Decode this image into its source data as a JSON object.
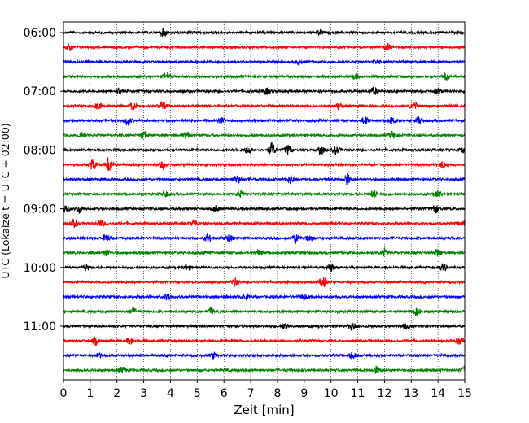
{
  "chart_data": {
    "type": "line",
    "xlabel": "Zeit  [min]",
    "ylabel": "UTC (Lokalzeit = UTC + 02:00)",
    "xlim": [
      0,
      15
    ],
    "x_ticks": [
      "0",
      "1",
      "2",
      "3",
      "4",
      "5",
      "6",
      "7",
      "8",
      "9",
      "10",
      "11",
      "12",
      "13",
      "14",
      "15"
    ],
    "y_ticks": [
      "06:00",
      "07:00",
      "08:00",
      "09:00",
      "10:00",
      "11:00"
    ],
    "grid": "vertical dotted lines at each minute",
    "trace_interval_min": 15,
    "color_cycle": [
      "#000000",
      "#ff0000",
      "#0000ff",
      "#008000"
    ],
    "series": [
      {
        "start": "06:00",
        "color": "#000000",
        "events": [
          [
            3.75,
            1.0
          ],
          [
            9.6,
            0.7
          ]
        ]
      },
      {
        "start": "06:15",
        "color": "#ff0000",
        "events": [
          [
            0.25,
            1.0
          ],
          [
            12.1,
            1.0
          ]
        ]
      },
      {
        "start": "06:30",
        "color": "#0000ff",
        "events": [
          [
            8.8,
            0.5
          ],
          [
            11.7,
            0.5
          ]
        ]
      },
      {
        "start": "06:45",
        "color": "#008000",
        "events": [
          [
            3.85,
            1.0
          ],
          [
            14.3,
            1.0
          ],
          [
            10.9,
            0.6
          ]
        ]
      },
      {
        "start": "07:00",
        "color": "#000000",
        "events": [
          [
            2.1,
            1.0
          ],
          [
            7.6,
            0.8
          ],
          [
            11.6,
            0.9
          ],
          [
            14.0,
            0.7
          ]
        ]
      },
      {
        "start": "07:15",
        "color": "#ff0000",
        "events": [
          [
            1.3,
            0.8
          ],
          [
            2.6,
            0.9
          ],
          [
            3.7,
            1.2
          ],
          [
            10.3,
            0.8
          ],
          [
            13.1,
            1.0
          ]
        ]
      },
      {
        "start": "07:30",
        "color": "#0000ff",
        "events": [
          [
            2.4,
            1.2
          ],
          [
            5.9,
            0.8
          ],
          [
            11.3,
            1.2
          ],
          [
            12.3,
            1.0
          ],
          [
            13.3,
            1.0
          ]
        ]
      },
      {
        "start": "07:45",
        "color": "#008000",
        "events": [
          [
            0.7,
            0.9
          ],
          [
            3.0,
            1.0
          ],
          [
            4.6,
            0.9
          ],
          [
            12.3,
            1.0
          ]
        ]
      },
      {
        "start": "08:00",
        "color": "#000000",
        "events": [
          [
            6.9,
            1.0
          ],
          [
            7.8,
            1.8
          ],
          [
            8.4,
            1.3
          ],
          [
            9.6,
            1.5
          ],
          [
            10.2,
            1.0
          ],
          [
            14.9,
            0.8
          ]
        ]
      },
      {
        "start": "08:15",
        "color": "#ff0000",
        "events": [
          [
            1.1,
            1.4
          ],
          [
            1.7,
            2.0
          ],
          [
            3.7,
            1.0
          ],
          [
            14.2,
            1.0
          ]
        ]
      },
      {
        "start": "08:30",
        "color": "#0000ff",
        "events": [
          [
            6.5,
            1.0
          ],
          [
            8.5,
            1.0
          ],
          [
            10.6,
            1.4
          ]
        ]
      },
      {
        "start": "08:45",
        "color": "#008000",
        "events": [
          [
            3.8,
            0.9
          ],
          [
            6.6,
            0.9
          ],
          [
            11.6,
            1.0
          ],
          [
            14.0,
            1.0
          ]
        ]
      },
      {
        "start": "09:00",
        "color": "#000000",
        "events": [
          [
            0.1,
            1.0
          ],
          [
            0.6,
            1.0
          ],
          [
            5.7,
            0.8
          ],
          [
            13.9,
            1.1
          ]
        ]
      },
      {
        "start": "09:15",
        "color": "#ff0000",
        "events": [
          [
            0.4,
            0.9
          ],
          [
            1.4,
            0.9
          ],
          [
            4.9,
            0.9
          ],
          [
            14.9,
            0.8
          ]
        ]
      },
      {
        "start": "09:30",
        "color": "#0000ff",
        "events": [
          [
            1.6,
            1.0
          ],
          [
            5.4,
            1.1
          ],
          [
            6.2,
            0.9
          ],
          [
            8.7,
            1.4
          ],
          [
            9.2,
            1.0
          ]
        ]
      },
      {
        "start": "09:45",
        "color": "#008000",
        "events": [
          [
            1.6,
            0.9
          ],
          [
            7.3,
            0.7
          ],
          [
            12.0,
            0.9
          ],
          [
            14.0,
            1.0
          ]
        ]
      },
      {
        "start": "10:00",
        "color": "#000000",
        "events": [
          [
            0.8,
            0.8
          ],
          [
            4.6,
            0.8
          ],
          [
            10.0,
            0.9
          ],
          [
            14.2,
            1.0
          ]
        ]
      },
      {
        "start": "10:15",
        "color": "#ff0000",
        "events": [
          [
            6.4,
            1.0
          ],
          [
            9.7,
            1.3
          ]
        ]
      },
      {
        "start": "10:30",
        "color": "#0000ff",
        "events": [
          [
            3.9,
            0.8
          ],
          [
            6.8,
            0.9
          ],
          [
            9.0,
            0.8
          ]
        ]
      },
      {
        "start": "10:45",
        "color": "#008000",
        "events": [
          [
            2.6,
            0.9
          ],
          [
            5.5,
            0.9
          ],
          [
            13.2,
            1.0
          ]
        ]
      },
      {
        "start": "11:00",
        "color": "#000000",
        "events": [
          [
            8.3,
            0.9
          ],
          [
            10.8,
            1.1
          ],
          [
            12.8,
            0.7
          ]
        ]
      },
      {
        "start": "11:15",
        "color": "#ff0000",
        "events": [
          [
            1.2,
            1.0
          ],
          [
            2.5,
            0.9
          ],
          [
            14.8,
            0.9
          ]
        ]
      },
      {
        "start": "11:30",
        "color": "#0000ff",
        "events": [
          [
            1.3,
            0.7
          ],
          [
            5.6,
            0.8
          ],
          [
            10.8,
            0.8
          ]
        ]
      },
      {
        "start": "11:45",
        "color": "#008000",
        "events": [
          [
            2.2,
            0.8
          ],
          [
            11.7,
            0.9
          ],
          [
            15.0,
            0.9
          ]
        ]
      }
    ]
  }
}
